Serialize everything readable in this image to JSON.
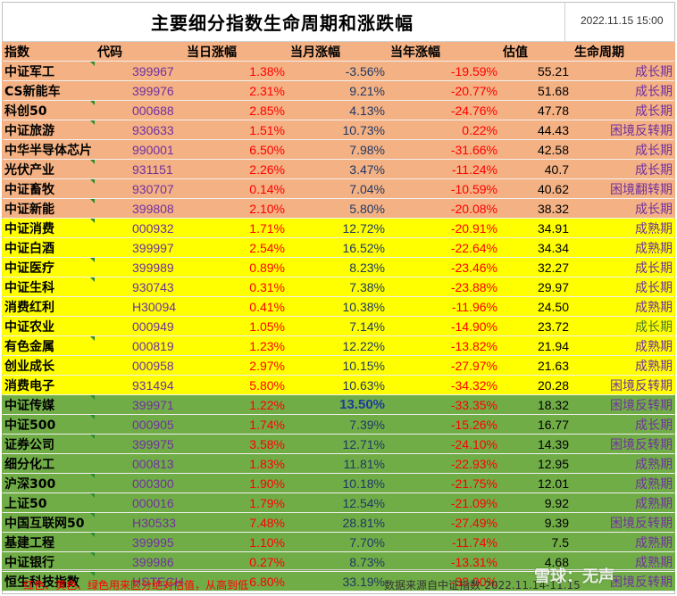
{
  "title": "主要细分指数生命周期和涨跌幅",
  "timestamp": "2022.11.15 15:00",
  "headers": {
    "name": "指数",
    "code": "代码",
    "day": "当日涨幅",
    "month": "当月涨幅",
    "year": "当年涨幅",
    "valuation": "估值",
    "cycle": "生命周期"
  },
  "rows": [
    {
      "name": "中证军工",
      "code": "399967",
      "day": "1.38%",
      "month": "-3.56%",
      "year": "-19.59%",
      "valuation": "55.21",
      "cycle": "成长期",
      "band": "orange"
    },
    {
      "name": "CS新能车",
      "code": "399976",
      "day": "2.31%",
      "month": "9.21%",
      "year": "-20.77%",
      "valuation": "51.68",
      "cycle": "成长期",
      "band": "orange"
    },
    {
      "name": "科创50",
      "code": "000688",
      "day": "2.85%",
      "month": "4.13%",
      "year": "-24.76%",
      "valuation": "47.78",
      "cycle": "成长期",
      "band": "orange"
    },
    {
      "name": "中证旅游",
      "code": "930633",
      "day": "1.51%",
      "month": "10.73%",
      "year": "0.22%",
      "valuation": "44.43",
      "cycle": "困境反转期",
      "band": "orange"
    },
    {
      "name": "中华半导体芯片",
      "code": "990001",
      "day": "6.50%",
      "month": "7.98%",
      "year": "-31.66%",
      "valuation": "42.58",
      "cycle": "成长期",
      "band": "orange"
    },
    {
      "name": "光伏产业",
      "code": "931151",
      "day": "2.26%",
      "month": "3.47%",
      "year": "-11.24%",
      "valuation": "40.7",
      "cycle": "成长期",
      "band": "orange"
    },
    {
      "name": "中证畜牧",
      "code": "930707",
      "day": "0.14%",
      "month": "7.04%",
      "year": "-10.59%",
      "valuation": "40.62",
      "cycle": "困境翻转期",
      "band": "orange"
    },
    {
      "name": "中证新能",
      "code": "399808",
      "day": "2.10%",
      "month": "5.80%",
      "year": "-20.08%",
      "valuation": "38.32",
      "cycle": "成长期",
      "band": "orange"
    },
    {
      "name": "中证消费",
      "code": "000932",
      "day": "1.71%",
      "month": "12.72%",
      "year": "-20.91%",
      "valuation": "34.91",
      "cycle": "成熟期",
      "band": "yellow"
    },
    {
      "name": "中证白酒",
      "code": "399997",
      "day": "2.54%",
      "month": "16.52%",
      "year": "-22.64%",
      "valuation": "34.34",
      "cycle": "成熟期",
      "band": "yellow"
    },
    {
      "name": "中证医疗",
      "code": "399989",
      "day": "0.89%",
      "month": "8.23%",
      "year": "-23.46%",
      "valuation": "32.27",
      "cycle": "成长期",
      "band": "yellow"
    },
    {
      "name": "中证生科",
      "code": "930743",
      "day": "0.31%",
      "month": "7.38%",
      "year": "-23.88%",
      "valuation": "29.97",
      "cycle": "成长期",
      "band": "yellow"
    },
    {
      "name": "消费红利",
      "code": "H30094",
      "day": "0.41%",
      "month": "10.38%",
      "year": "-11.96%",
      "valuation": "24.50",
      "cycle": "成熟期",
      "band": "yellow"
    },
    {
      "name": "中证农业",
      "code": "000949",
      "day": "1.05%",
      "month": "7.14%",
      "year": "-14.90%",
      "valuation": "23.72",
      "cycle": "成长期",
      "band": "yellow"
    },
    {
      "name": "有色金属",
      "code": "000819",
      "day": "1.23%",
      "month": "12.22%",
      "year": "-13.82%",
      "valuation": "21.94",
      "cycle": "成熟期",
      "band": "yellow"
    },
    {
      "name": "创业成长",
      "code": "000958",
      "day": "2.97%",
      "month": "10.15%",
      "year": "-27.97%",
      "valuation": "21.63",
      "cycle": "成熟期",
      "band": "yellow"
    },
    {
      "name": "消费电子",
      "code": "931494",
      "day": "5.80%",
      "month": "10.63%",
      "year": "-34.32%",
      "valuation": "20.28",
      "cycle": "困境反转期",
      "band": "yellow"
    },
    {
      "name": "中证传媒",
      "code": "399971",
      "day": "1.22%",
      "month": "13.50%",
      "year": "-33.35%",
      "valuation": "18.32",
      "cycle": "困境反转期",
      "band": "green"
    },
    {
      "name": "中证500",
      "code": "000905",
      "day": "1.74%",
      "month": "7.39%",
      "year": "-15.26%",
      "valuation": "16.77",
      "cycle": "成长期",
      "band": "green"
    },
    {
      "name": "证券公司",
      "code": "399975",
      "day": "3.58%",
      "month": "12.71%",
      "year": "-24.10%",
      "valuation": "14.39",
      "cycle": "困境反转期",
      "band": "green"
    },
    {
      "name": "细分化工",
      "code": "000813",
      "day": "1.83%",
      "month": "11.81%",
      "year": "-22.93%",
      "valuation": "12.95",
      "cycle": "成熟期",
      "band": "green"
    },
    {
      "name": "沪深300",
      "code": "000300",
      "day": "1.90%",
      "month": "10.18%",
      "year": "-21.75%",
      "valuation": "12.01",
      "cycle": "成熟期",
      "band": "green"
    },
    {
      "name": "上证50",
      "code": "000016",
      "day": "1.79%",
      "month": "12.54%",
      "year": "-21.09%",
      "valuation": "9.92",
      "cycle": "成熟期",
      "band": "green"
    },
    {
      "name": "中国互联网50",
      "code": "H30533",
      "day": "7.48%",
      "month": "28.81%",
      "year": "-27.49%",
      "valuation": "9.39",
      "cycle": "困境反转期",
      "band": "green"
    },
    {
      "name": "基建工程",
      "code": "399995",
      "day": "1.10%",
      "month": "7.70%",
      "year": "-11.74%",
      "valuation": "7.5",
      "cycle": "成熟期",
      "band": "green"
    },
    {
      "name": "中证银行",
      "code": "399986",
      "day": "0.27%",
      "month": "8.73%",
      "year": "-13.31%",
      "valuation": "4.68",
      "cycle": "成熟期",
      "band": "green"
    },
    {
      "name": "恒生科技指数",
      "code": "HSTECH",
      "day": "6.80%",
      "month": "33.19%",
      "year": "-33.00%",
      "valuation": "",
      "cycle": "困境反转期",
      "band": "green"
    }
  ],
  "footer": {
    "note": "红色、黄色、绿色用来区分绝对估值，从高到低",
    "source": "数据来源自中证指数-2022.11.14-11.15"
  },
  "watermark": "雪球：无声",
  "colors": {
    "orange": "#f4b183",
    "yellow": "#ffff00",
    "green": "#70ad47"
  }
}
